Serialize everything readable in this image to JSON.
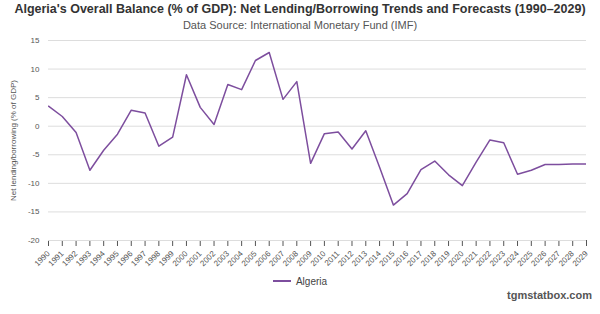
{
  "chart_data": {
    "type": "line",
    "title": "Algeria's Overall Balance (% of GDP): Net Lending/Borrowing Trends and Forecasts (1990–2029)",
    "subtitle": "Data Source: International Monetary Fund (IMF)",
    "y_label": "Net lending/borrowing (% of GDP)",
    "footer": "tgmstatbox.com",
    "x": [
      1990,
      1991,
      1992,
      1993,
      1994,
      1995,
      1996,
      1997,
      1998,
      1999,
      2000,
      2001,
      2002,
      2003,
      2004,
      2005,
      2006,
      2007,
      2008,
      2009,
      2010,
      2011,
      2012,
      2013,
      2014,
      2015,
      2016,
      2017,
      2018,
      2019,
      2020,
      2021,
      2022,
      2023,
      2024,
      2025,
      2026,
      2027,
      2028,
      2029
    ],
    "series": [
      {
        "name": "Algeria",
        "color": "#7d4e9e",
        "values": [
          3.5,
          1.7,
          -1.1,
          -7.7,
          -4.2,
          -1.4,
          2.8,
          2.3,
          -3.5,
          -1.9,
          9.0,
          3.3,
          0.3,
          7.3,
          6.4,
          11.5,
          12.9,
          4.7,
          7.8,
          -6.5,
          -1.3,
          -1.0,
          -4.0,
          -0.8,
          -7.2,
          -13.8,
          -11.8,
          -7.6,
          -6.1,
          -8.5,
          -10.4,
          -6.3,
          -2.4,
          -2.9,
          -8.4,
          -7.7,
          -6.7,
          -6.7,
          -6.6,
          -6.6
        ]
      }
    ],
    "xlim": [
      1990,
      2029
    ],
    "xticks": [
      1990,
      1991,
      1992,
      1993,
      1994,
      1995,
      1996,
      1997,
      1998,
      1999,
      2000,
      2001,
      2002,
      2003,
      2004,
      2005,
      2006,
      2007,
      2008,
      2009,
      2010,
      2011,
      2012,
      2013,
      2014,
      2015,
      2016,
      2017,
      2018,
      2019,
      2020,
      2021,
      2022,
      2023,
      2024,
      2025,
      2026,
      2027,
      2028,
      2029
    ],
    "ylim": [
      -20,
      15
    ],
    "yticks": [
      -20,
      -15,
      -10,
      -5,
      0,
      5,
      10,
      15
    ],
    "grid": true,
    "legend": "bottom"
  }
}
